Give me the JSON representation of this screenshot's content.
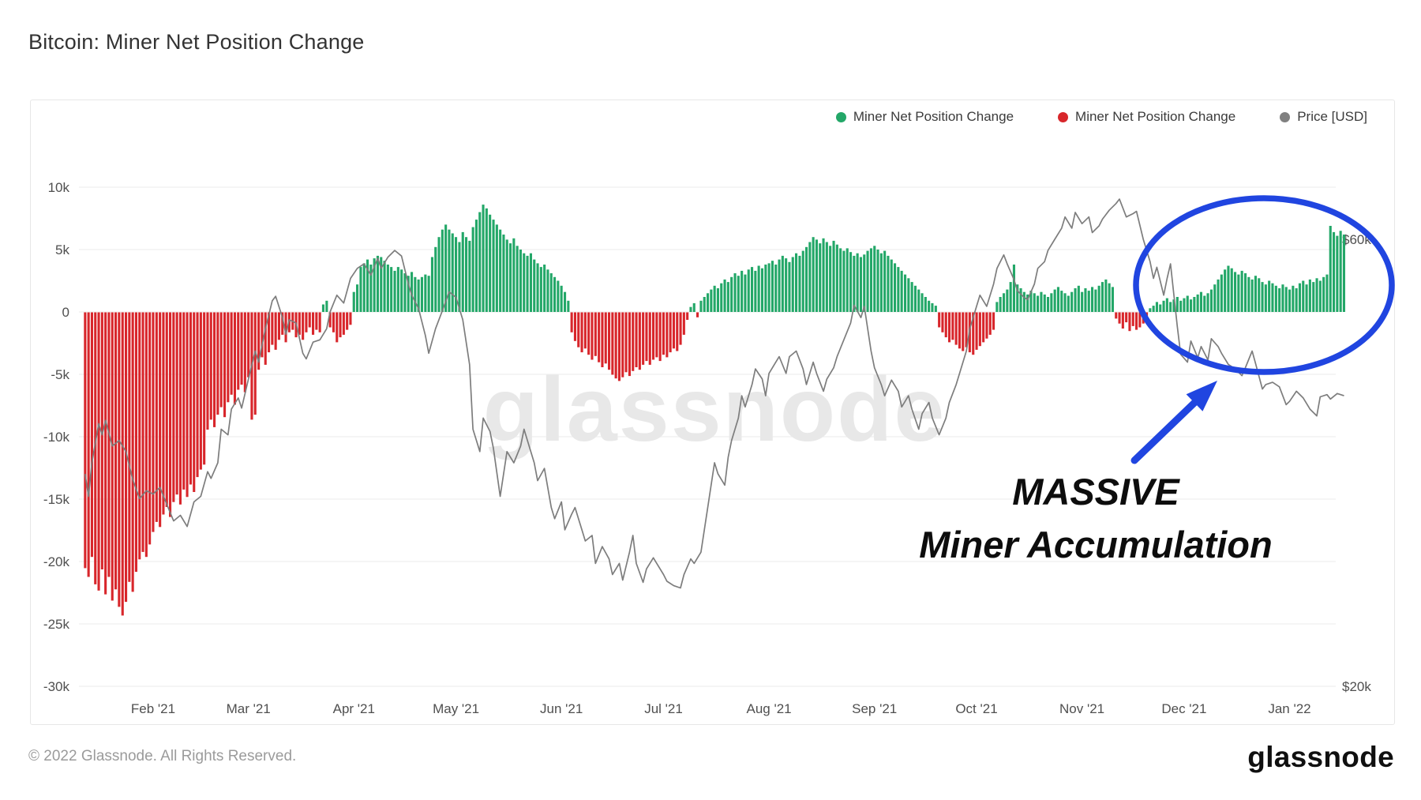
{
  "header": {
    "title": "Bitcoin: Miner Net Position Change"
  },
  "legend": [
    {
      "label": "Miner Net Position Change",
      "color": "#23a768"
    },
    {
      "label": "Miner Net Position Change",
      "color": "#d8262b"
    },
    {
      "label": "Price [USD]",
      "color": "#808080"
    }
  ],
  "watermark": {
    "text": "glassnode",
    "color": "#e8e8e8"
  },
  "annotation": {
    "line1": "MASSIVE",
    "line2": "Miner Accumulation",
    "color": "#2045e0"
  },
  "footer": {
    "copyright": "© 2022 Glassnode. All Rights Reserved.",
    "brand": "glassnode"
  },
  "chart_data": {
    "type": "bar+line",
    "title": "Bitcoin: Miner Net Position Change",
    "series_names": [
      "Miner Net Position Change (positive)",
      "Miner Net Position Change (negative)",
      "Price [USD]"
    ],
    "start_date": "2021-01-12",
    "x_ticks": [
      {
        "label": "Feb '21",
        "day": 20
      },
      {
        "label": "Mar '21",
        "day": 48
      },
      {
        "label": "Apr '21",
        "day": 79
      },
      {
        "label": "May '21",
        "day": 109
      },
      {
        "label": "Jun '21",
        "day": 140
      },
      {
        "label": "Jul '21",
        "day": 170
      },
      {
        "label": "Aug '21",
        "day": 201
      },
      {
        "label": "Sep '21",
        "day": 232
      },
      {
        "label": "Oct '21",
        "day": 262
      },
      {
        "label": "Nov '21",
        "day": 293
      },
      {
        "label": "Dec '21",
        "day": 323
      },
      {
        "label": "Jan '22",
        "day": 354
      }
    ],
    "left_axis": {
      "unit": "BTC (thousands)",
      "ticks": [
        {
          "label": "10k",
          "value": 10
        },
        {
          "label": "5k",
          "value": 5
        },
        {
          "label": "0",
          "value": 0
        },
        {
          "label": "-5k",
          "value": -5
        },
        {
          "label": "-10k",
          "value": -10
        },
        {
          "label": "-15k",
          "value": -15
        },
        {
          "label": "-20k",
          "value": -20
        },
        {
          "label": "-25k",
          "value": -25
        },
        {
          "label": "-30k",
          "value": -30
        }
      ]
    },
    "right_axis": {
      "unit": "USD (thousands)",
      "ticks": [
        {
          "label": "$60k",
          "value": 60
        },
        {
          "label": "$20k",
          "value": 20
        }
      ]
    },
    "colors": {
      "positive": "#23a768",
      "negative": "#d8262b",
      "price": "#7d7d7d",
      "grid": "#efefef"
    },
    "miner_net_position_change_btc_k": [
      -20.5,
      -21.2,
      -19.6,
      -21.8,
      -22.3,
      -20.6,
      -22.6,
      -21.2,
      -23.1,
      -22.2,
      -23.6,
      -24.3,
      -23.2,
      -21.6,
      -22.4,
      -20.8,
      -19.8,
      -19.2,
      -19.6,
      -18.6,
      -17.6,
      -16.8,
      -17.2,
      -16.2,
      -15.6,
      -16.4,
      -15.2,
      -14.6,
      -15.4,
      -14.2,
      -14.8,
      -13.8,
      -14.4,
      -13.2,
      -12.6,
      -12.2,
      -9.4,
      -8.6,
      -9.2,
      -8.2,
      -7.6,
      -8.4,
      -7.2,
      -6.6,
      -7.4,
      -6.2,
      -5.8,
      -6.4,
      -5.2,
      -8.6,
      -8.2,
      -4.6,
      -3.6,
      -4.2,
      -3.2,
      -2.6,
      -3.0,
      -2.2,
      -1.8,
      -2.4,
      -1.6,
      -1.4,
      -2.0,
      -1.8,
      -2.2,
      -1.6,
      -1.2,
      -1.8,
      -1.4,
      -1.6,
      0.6,
      0.9,
      -1.2,
      -1.6,
      -2.4,
      -2.0,
      -1.8,
      -1.4,
      -1.0,
      1.6,
      2.2,
      3.6,
      3.9,
      4.2,
      3.8,
      4.3,
      4.5,
      4.4,
      4.1,
      3.8,
      3.6,
      3.3,
      3.6,
      3.4,
      3.1,
      2.9,
      3.2,
      2.8,
      2.6,
      2.8,
      3.0,
      2.9,
      4.4,
      5.2,
      6.0,
      6.6,
      7.0,
      6.6,
      6.3,
      6.0,
      5.6,
      6.4,
      6.0,
      5.7,
      6.8,
      7.4,
      8.0,
      8.6,
      8.3,
      7.8,
      7.4,
      7.0,
      6.6,
      6.2,
      5.8,
      5.5,
      5.9,
      5.3,
      5.0,
      4.7,
      4.5,
      4.7,
      4.2,
      3.9,
      3.6,
      3.8,
      3.4,
      3.1,
      2.8,
      2.5,
      2.1,
      1.6,
      0.9,
      -1.6,
      -2.3,
      -2.8,
      -3.2,
      -2.9,
      -3.4,
      -3.8,
      -3.5,
      -4.0,
      -4.4,
      -4.1,
      -4.6,
      -5.0,
      -5.3,
      -5.5,
      -5.2,
      -4.8,
      -5.1,
      -4.7,
      -4.4,
      -4.6,
      -4.2,
      -3.9,
      -4.2,
      -3.8,
      -3.6,
      -3.9,
      -3.4,
      -3.6,
      -3.2,
      -2.9,
      -3.1,
      -2.6,
      -1.8,
      -0.6,
      0.4,
      0.7,
      -0.4,
      0.9,
      1.2,
      1.5,
      1.8,
      2.1,
      1.9,
      2.3,
      2.6,
      2.4,
      2.8,
      3.1,
      2.9,
      3.3,
      3.0,
      3.4,
      3.6,
      3.3,
      3.7,
      3.5,
      3.8,
      3.9,
      4.1,
      3.8,
      4.2,
      4.5,
      4.3,
      4.0,
      4.4,
      4.7,
      4.5,
      4.9,
      5.2,
      5.6,
      6.0,
      5.8,
      5.5,
      5.9,
      5.6,
      5.3,
      5.7,
      5.4,
      5.1,
      4.9,
      5.1,
      4.8,
      4.5,
      4.7,
      4.4,
      4.6,
      4.9,
      5.1,
      5.3,
      5.0,
      4.7,
      4.9,
      4.5,
      4.2,
      3.9,
      3.6,
      3.3,
      3.0,
      2.7,
      2.4,
      2.1,
      1.8,
      1.5,
      1.2,
      0.9,
      0.7,
      0.5,
      -1.2,
      -1.6,
      -2.0,
      -2.4,
      -2.2,
      -2.6,
      -2.9,
      -3.1,
      -2.8,
      -3.2,
      -3.4,
      -3.0,
      -2.7,
      -2.4,
      -2.1,
      -1.8,
      -1.4,
      0.8,
      1.2,
      1.5,
      1.8,
      2.4,
      3.8,
      2.2,
      1.9,
      1.6,
      1.4,
      1.7,
      1.5,
      1.3,
      1.6,
      1.4,
      1.2,
      1.5,
      1.8,
      2.0,
      1.7,
      1.5,
      1.3,
      1.6,
      1.9,
      2.1,
      1.6,
      1.9,
      1.7,
      2.0,
      1.8,
      2.1,
      2.4,
      2.6,
      2.3,
      2.0,
      -0.5,
      -0.9,
      -1.3,
      -0.8,
      -1.5,
      -1.1,
      -1.4,
      -1.2,
      -0.9,
      -0.6,
      0.3,
      0.5,
      0.8,
      0.6,
      0.9,
      1.1,
      0.8,
      1.0,
      1.2,
      0.9,
      1.1,
      1.3,
      1.0,
      1.2,
      1.4,
      1.6,
      1.3,
      1.5,
      1.8,
      2.2,
      2.6,
      3.0,
      3.4,
      3.7,
      3.5,
      3.2,
      3.0,
      3.3,
      3.1,
      2.8,
      2.6,
      2.9,
      2.7,
      2.4,
      2.2,
      2.5,
      2.3,
      2.1,
      1.9,
      2.2,
      2.0,
      1.8,
      2.1,
      1.9,
      2.3,
      2.5,
      2.2,
      2.6,
      2.4,
      2.7,
      2.5,
      2.8,
      3.0,
      6.9,
      6.4,
      6.1,
      6.5,
      6.2
    ],
    "price_usd_k": [
      [
        0,
        39
      ],
      [
        1,
        37
      ],
      [
        2,
        40
      ],
      [
        4,
        43.5
      ],
      [
        5,
        42.5
      ],
      [
        6,
        43.8
      ],
      [
        8,
        41.5
      ],
      [
        10,
        42
      ],
      [
        12,
        41
      ],
      [
        14,
        38.5
      ],
      [
        16,
        36.8
      ],
      [
        18,
        37.5
      ],
      [
        20,
        37.2
      ],
      [
        22,
        37.8
      ],
      [
        24,
        36.3
      ],
      [
        26,
        34.8
      ],
      [
        28,
        35.3
      ],
      [
        30,
        34.3
      ],
      [
        32,
        36.5
      ],
      [
        34,
        37
      ],
      [
        36,
        39.2
      ],
      [
        37,
        38.6
      ],
      [
        39,
        40
      ],
      [
        40,
        43
      ],
      [
        42,
        42.5
      ],
      [
        43,
        44.8
      ],
      [
        45,
        45.8
      ],
      [
        46,
        44.9
      ],
      [
        48,
        47.5
      ],
      [
        50,
        50
      ],
      [
        51,
        49
      ],
      [
        53,
        52
      ],
      [
        55,
        54.5
      ],
      [
        56,
        54.9
      ],
      [
        58,
        53
      ],
      [
        59,
        51.5
      ],
      [
        60,
        52.8
      ],
      [
        62,
        52.5
      ],
      [
        64,
        49.8
      ],
      [
        65,
        49.3
      ],
      [
        67,
        50.8
      ],
      [
        69,
        51
      ],
      [
        71,
        52
      ],
      [
        72,
        53.5
      ],
      [
        74,
        55
      ],
      [
        76,
        54.3
      ],
      [
        78,
        56.5
      ],
      [
        80,
        57.4
      ],
      [
        82,
        57.8
      ],
      [
        84,
        56.8
      ],
      [
        86,
        58.3
      ],
      [
        87,
        57.4
      ],
      [
        89,
        58.4
      ],
      [
        91,
        59
      ],
      [
        93,
        58.5
      ],
      [
        95,
        56
      ],
      [
        96,
        55
      ],
      [
        98,
        53.8
      ],
      [
        100,
        51.4
      ],
      [
        101,
        49.8
      ],
      [
        103,
        52
      ],
      [
        105,
        53.6
      ],
      [
        107,
        55.3
      ],
      [
        109,
        54.8
      ],
      [
        111,
        52.8
      ],
      [
        113,
        48.8
      ],
      [
        114,
        43
      ],
      [
        116,
        41
      ],
      [
        117,
        44
      ],
      [
        119,
        42.8
      ],
      [
        120,
        41.3
      ],
      [
        122,
        37
      ],
      [
        123,
        39
      ],
      [
        124,
        41
      ],
      [
        126,
        40
      ],
      [
        128,
        41.5
      ],
      [
        129,
        43
      ],
      [
        130,
        42
      ],
      [
        132,
        40
      ],
      [
        133,
        38.4
      ],
      [
        135,
        39.5
      ],
      [
        137,
        36
      ],
      [
        138,
        35
      ],
      [
        140,
        36.5
      ],
      [
        141,
        34
      ],
      [
        143,
        35.4
      ],
      [
        144,
        36
      ],
      [
        146,
        34
      ],
      [
        147,
        33
      ],
      [
        149,
        33.5
      ],
      [
        150,
        31
      ],
      [
        152,
        32.5
      ],
      [
        154,
        31.4
      ],
      [
        155,
        30
      ],
      [
        157,
        31
      ],
      [
        158,
        29.5
      ],
      [
        160,
        32
      ],
      [
        161,
        33.5
      ],
      [
        162,
        31
      ],
      [
        164,
        29.3
      ],
      [
        165,
        30.5
      ],
      [
        167,
        31.5
      ],
      [
        168,
        31
      ],
      [
        170,
        30
      ],
      [
        171,
        29.4
      ],
      [
        173,
        29
      ],
      [
        175,
        28.8
      ],
      [
        176,
        30
      ],
      [
        178,
        31.4
      ],
      [
        179,
        31
      ],
      [
        181,
        32
      ],
      [
        182,
        34
      ],
      [
        184,
        38
      ],
      [
        185,
        40
      ],
      [
        186,
        39
      ],
      [
        188,
        38
      ],
      [
        189,
        40.5
      ],
      [
        190,
        42
      ],
      [
        192,
        44
      ],
      [
        193,
        46
      ],
      [
        194,
        45
      ],
      [
        196,
        47
      ],
      [
        197,
        48.4
      ],
      [
        199,
        47.5
      ],
      [
        200,
        46
      ],
      [
        201,
        48
      ],
      [
        203,
        49
      ],
      [
        204,
        49.5
      ],
      [
        206,
        48
      ],
      [
        207,
        49.5
      ],
      [
        209,
        50
      ],
      [
        211,
        48.4
      ],
      [
        212,
        47
      ],
      [
        214,
        49
      ],
      [
        215,
        48
      ],
      [
        217,
        46.4
      ],
      [
        218,
        47.5
      ],
      [
        220,
        48.5
      ],
      [
        221,
        49.5
      ],
      [
        223,
        51
      ],
      [
        225,
        52.5
      ],
      [
        226,
        54.1
      ],
      [
        228,
        53
      ],
      [
        229,
        54
      ],
      [
        230,
        52
      ],
      [
        231,
        50
      ],
      [
        232,
        48.5
      ],
      [
        234,
        47
      ],
      [
        235,
        46
      ],
      [
        237,
        47.4
      ],
      [
        239,
        46.4
      ],
      [
        240,
        45
      ],
      [
        242,
        46
      ],
      [
        243,
        44.8
      ],
      [
        245,
        43
      ],
      [
        246,
        44.4
      ],
      [
        248,
        45.4
      ],
      [
        249,
        44
      ],
      [
        251,
        42.5
      ],
      [
        253,
        44
      ],
      [
        254,
        45.4
      ],
      [
        256,
        47
      ],
      [
        257,
        48
      ],
      [
        259,
        50
      ],
      [
        260,
        52
      ],
      [
        262,
        54
      ],
      [
        263,
        55
      ],
      [
        265,
        54
      ],
      [
        267,
        56
      ],
      [
        268,
        57.4
      ],
      [
        270,
        58.6
      ],
      [
        271,
        57.8
      ],
      [
        273,
        56.4
      ],
      [
        274,
        55.4
      ],
      [
        276,
        54.8
      ],
      [
        277,
        54.6
      ],
      [
        279,
        56
      ],
      [
        280,
        57.4
      ],
      [
        282,
        58
      ],
      [
        283,
        59
      ],
      [
        285,
        60
      ],
      [
        287,
        61
      ],
      [
        288,
        62
      ],
      [
        290,
        61
      ],
      [
        291,
        62.4
      ],
      [
        293,
        61.4
      ],
      [
        295,
        62
      ],
      [
        296,
        60.6
      ],
      [
        298,
        61.2
      ],
      [
        299,
        61.8
      ],
      [
        301,
        62.6
      ],
      [
        303,
        63.2
      ],
      [
        304,
        63.6
      ],
      [
        306,
        62
      ],
      [
        308,
        62.3
      ],
      [
        309,
        62.5
      ],
      [
        311,
        60
      ],
      [
        313,
        58
      ],
      [
        314,
        56.5
      ],
      [
        315,
        57.5
      ],
      [
        317,
        55
      ],
      [
        318,
        56.5
      ],
      [
        319,
        57.8
      ],
      [
        321,
        52.2
      ],
      [
        322,
        49.7
      ],
      [
        324,
        49
      ],
      [
        325,
        50.9
      ],
      [
        327,
        49.4
      ],
      [
        328,
        50.4
      ],
      [
        330,
        49.2
      ],
      [
        331,
        51.1
      ],
      [
        333,
        50.4
      ],
      [
        334,
        49.8
      ],
      [
        336,
        48.8
      ],
      [
        338,
        48.4
      ],
      [
        340,
        47.8
      ],
      [
        341,
        48.5
      ],
      [
        343,
        50
      ],
      [
        344,
        48.9
      ],
      [
        346,
        46.6
      ],
      [
        347,
        47
      ],
      [
        349,
        47.2
      ],
      [
        351,
        46.8
      ],
      [
        353,
        45.2
      ],
      [
        354,
        45.5
      ],
      [
        356,
        46.4
      ],
      [
        358,
        45.8
      ],
      [
        360,
        44.8
      ],
      [
        362,
        44.2
      ],
      [
        363,
        45.9
      ],
      [
        365,
        46.1
      ],
      [
        366,
        45.7
      ],
      [
        368,
        46.2
      ],
      [
        370,
        46
      ]
    ]
  }
}
